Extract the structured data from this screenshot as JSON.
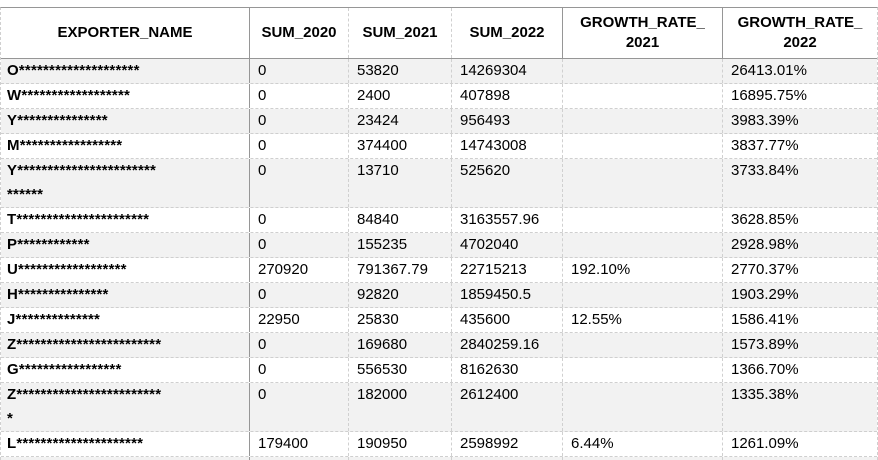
{
  "table": {
    "columns": [
      {
        "id": "exporter_name",
        "lines": [
          "EXPORTER_NAME"
        ]
      },
      {
        "id": "sum_2020",
        "lines": [
          "SUM_2020"
        ]
      },
      {
        "id": "sum_2021",
        "lines": [
          "SUM_2021"
        ]
      },
      {
        "id": "sum_2022",
        "lines": [
          "SUM_2022"
        ]
      },
      {
        "id": "growth_rate_2021",
        "lines": [
          "GROWTH_RATE_",
          "2021"
        ]
      },
      {
        "id": "growth_rate_2022",
        "lines": [
          "GROWTH_RATE_",
          "2022"
        ]
      }
    ],
    "rows": [
      {
        "exporter_name": "O********************",
        "sum_2020": "0",
        "sum_2021": "53820",
        "sum_2022": "14269304",
        "growth_rate_2021": "",
        "growth_rate_2022": "26413.01%"
      },
      {
        "exporter_name": "W******************",
        "sum_2020": "0",
        "sum_2021": "2400",
        "sum_2022": "407898",
        "growth_rate_2021": "",
        "growth_rate_2022": "16895.75%"
      },
      {
        "exporter_name": "Y***************",
        "sum_2020": "0",
        "sum_2021": "23424",
        "sum_2022": "956493",
        "growth_rate_2021": "",
        "growth_rate_2022": "3983.39%"
      },
      {
        "exporter_name": "M*****************",
        "sum_2020": "0",
        "sum_2021": "374400",
        "sum_2022": "14743008",
        "growth_rate_2021": "",
        "growth_rate_2022": "3837.77%"
      },
      {
        "exporter_name": "Y***********************\n******",
        "sum_2020": "0",
        "sum_2021": "13710",
        "sum_2022": "525620",
        "growth_rate_2021": "",
        "growth_rate_2022": "3733.84%"
      },
      {
        "exporter_name": "T**********************",
        "sum_2020": "0",
        "sum_2021": "84840",
        "sum_2022": "3163557.96",
        "growth_rate_2021": "",
        "growth_rate_2022": "3628.85%"
      },
      {
        "exporter_name": "P************",
        "sum_2020": "0",
        "sum_2021": "155235",
        "sum_2022": "4702040",
        "growth_rate_2021": "",
        "growth_rate_2022": "2928.98%"
      },
      {
        "exporter_name": "U******************",
        "sum_2020": "270920",
        "sum_2021": "791367.79",
        "sum_2022": "22715213",
        "growth_rate_2021": "192.10%",
        "growth_rate_2022": "2770.37%"
      },
      {
        "exporter_name": "H***************",
        "sum_2020": "0",
        "sum_2021": "92820",
        "sum_2022": "1859450.5",
        "growth_rate_2021": "",
        "growth_rate_2022": "1903.29%"
      },
      {
        "exporter_name": "J**************",
        "sum_2020": "22950",
        "sum_2021": "25830",
        "sum_2022": "435600",
        "growth_rate_2021": "12.55%",
        "growth_rate_2022": "1586.41%"
      },
      {
        "exporter_name": "Z************************",
        "sum_2020": "0",
        "sum_2021": "169680",
        "sum_2022": "2840259.16",
        "growth_rate_2021": "",
        "growth_rate_2022": "1573.89%"
      },
      {
        "exporter_name": "G*****************",
        "sum_2020": "0",
        "sum_2021": "556530",
        "sum_2022": "8162630",
        "growth_rate_2021": "",
        "growth_rate_2022": "1366.70%"
      },
      {
        "exporter_name": "Z************************\n*",
        "sum_2020": "0",
        "sum_2021": "182000",
        "sum_2022": "2612400",
        "growth_rate_2021": "",
        "growth_rate_2022": "1335.38%"
      },
      {
        "exporter_name": "L*********************",
        "sum_2020": "179400",
        "sum_2021": "190950",
        "sum_2022": "2598992",
        "growth_rate_2021": "6.44%",
        "growth_rate_2022": "1261.09%"
      }
    ]
  },
  "colors": {
    "band": "#f2f2f2",
    "solid_border": "#969696",
    "dashed_border": "#d0d0d0",
    "text": "#000000"
  }
}
